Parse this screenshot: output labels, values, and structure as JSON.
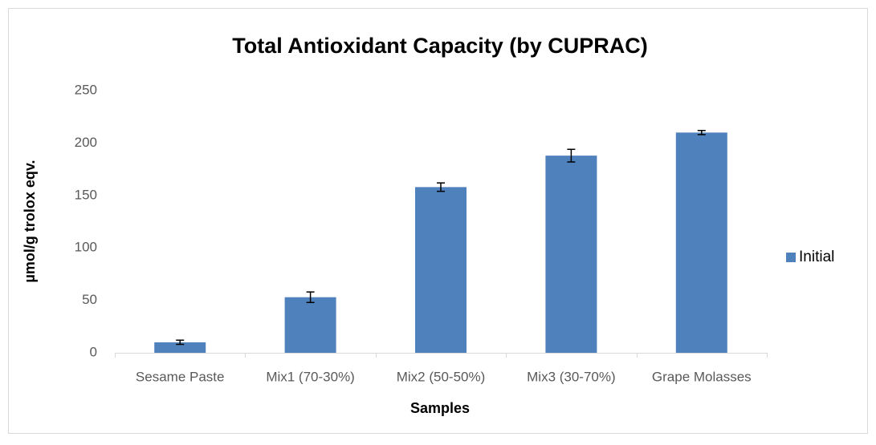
{
  "chart_data": {
    "type": "bar",
    "title": "Total Antioxidant Capacity (by CUPRAC)",
    "x_label": "Samples",
    "y_label": "µmol/g  trolox eqv.",
    "categories": [
      "Sesame Paste",
      "Mix1 (70-30%)",
      "Mix2 (50-50%)",
      "Mix3 (30-70%)",
      "Grape Molasses"
    ],
    "series": [
      {
        "name": "Initial",
        "color": "#4f81bd",
        "values": [
          10,
          53,
          158,
          188,
          210
        ],
        "errors": [
          2,
          5,
          4,
          6,
          2
        ]
      }
    ],
    "ylim": [
      0,
      250
    ],
    "yticks": [
      0,
      50,
      100,
      150,
      200,
      250
    ],
    "grid": false,
    "legend": "right"
  }
}
